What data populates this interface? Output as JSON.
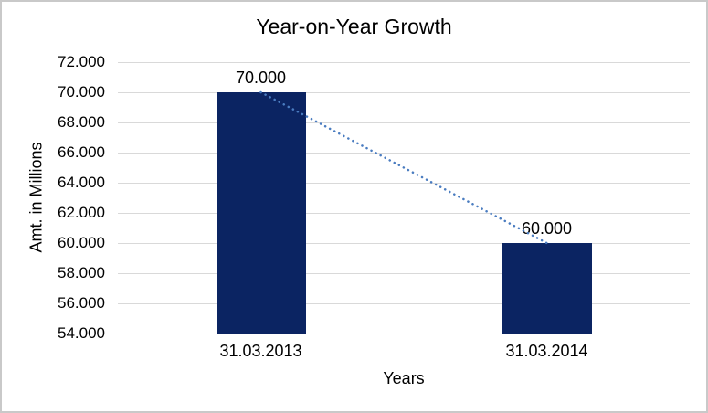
{
  "chart_data": {
    "type": "bar",
    "title": "Year-on-Year Growth",
    "xlabel": "Years",
    "ylabel": "Amt. in Millions",
    "categories": [
      "31.03.2013",
      "31.03.2014"
    ],
    "values": [
      70000,
      60000
    ],
    "value_labels": [
      "70.000",
      "60.000"
    ],
    "ylim": [
      54000,
      72000
    ],
    "y_tick_step": 2000,
    "y_tick_labels_top_to_bottom": [
      "72.000",
      "70.000",
      "68.000",
      "66.000",
      "64.000",
      "62.000",
      "60.000",
      "58.000",
      "56.000",
      "54.000"
    ],
    "grid": true,
    "legend": false,
    "trendline": {
      "type": "linear",
      "style": "dotted",
      "connects": [
        "70.000",
        "60.000"
      ]
    },
    "colors": {
      "bar": "#0b2462",
      "trendline": "#4a7cc0",
      "gridline": "#d9d9d9",
      "axis_line": "#d9d9d9",
      "text": "#000000",
      "background": "#ffffff",
      "frame_border": "#c9c9c9"
    }
  }
}
